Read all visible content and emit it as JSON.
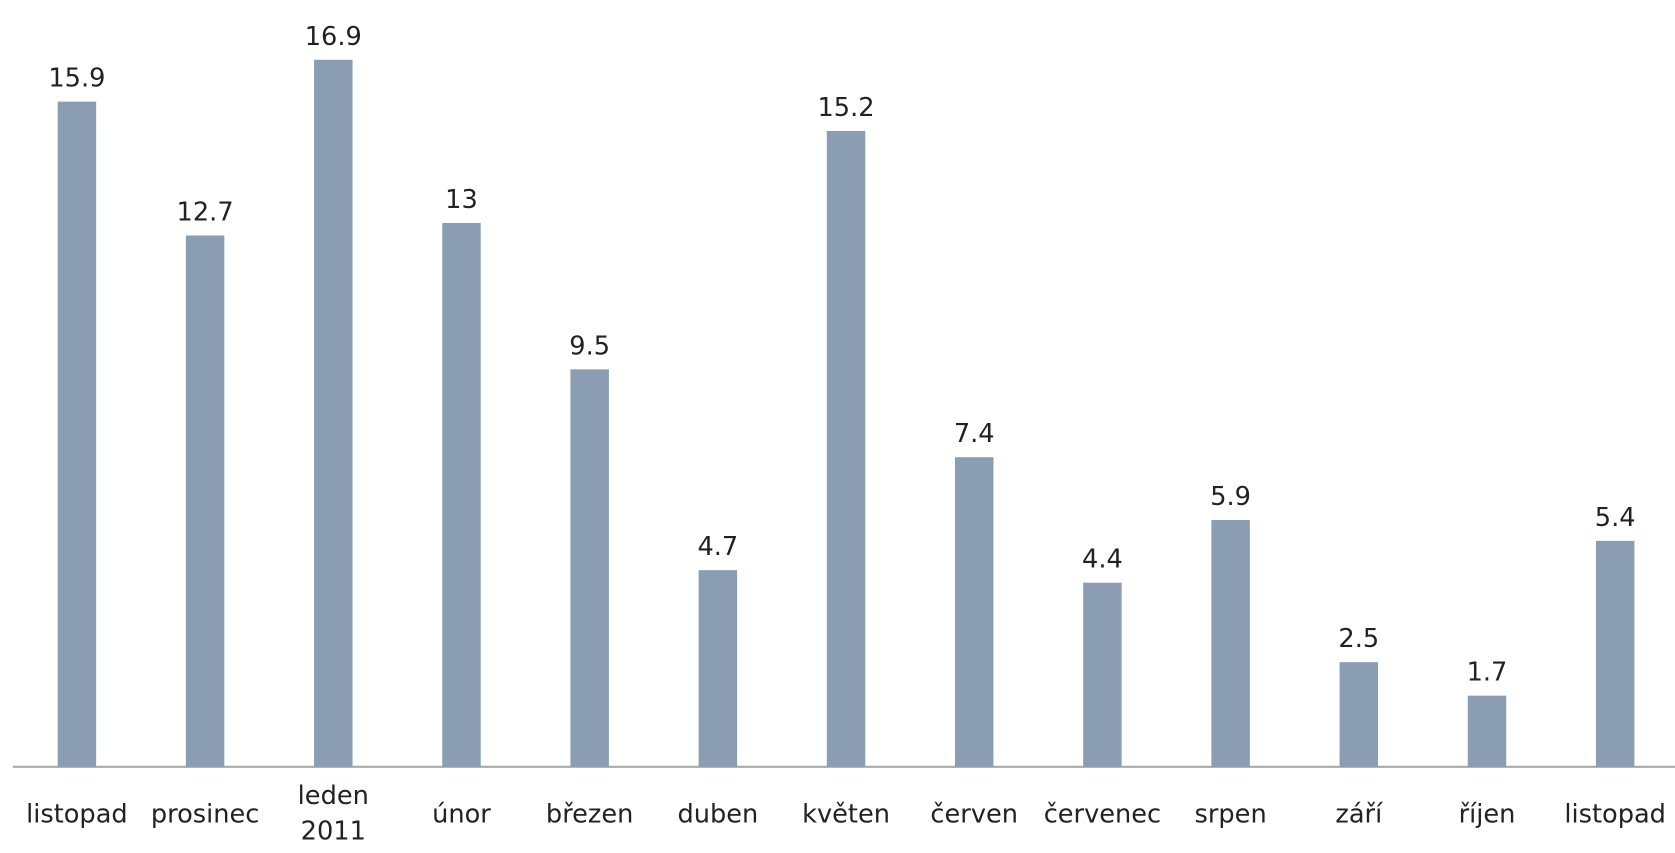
{
  "chart_data": {
    "type": "bar",
    "categories": [
      "listopad",
      "prosinec",
      "leden\n2011",
      "únor",
      "březen",
      "duben",
      "květen",
      "červen",
      "červenec",
      "srpen",
      "září",
      "říjen",
      "listopad"
    ],
    "values": [
      15.9,
      12.7,
      16.9,
      13,
      9.5,
      4.7,
      15.2,
      7.4,
      4.4,
      5.9,
      2.5,
      1.7,
      5.4
    ],
    "color": "#8a9db3",
    "grid": false
  }
}
